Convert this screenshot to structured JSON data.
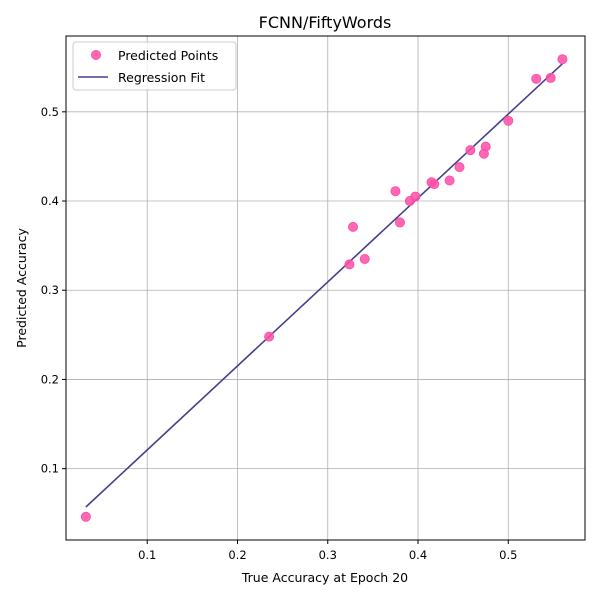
{
  "chart_data": {
    "type": "scatter",
    "title": "FCNN/FiftyWords",
    "xlabel": "True Accuracy at Epoch 20",
    "ylabel": "Predicted Accuracy",
    "xlim": [
      0.01,
      0.585
    ],
    "ylim": [
      0.02,
      0.585
    ],
    "xticks": [
      0.1,
      0.2,
      0.3,
      0.4,
      0.5
    ],
    "yticks": [
      0.1,
      0.2,
      0.3,
      0.4,
      0.5
    ],
    "xtick_labels": [
      "0.1",
      "0.2",
      "0.3",
      "0.4",
      "0.5"
    ],
    "ytick_labels": [
      "0.1",
      "0.2",
      "0.3",
      "0.4",
      "0.5"
    ],
    "grid": true,
    "legend": {
      "position": "top-left",
      "entries": [
        {
          "label": "Predicted Points",
          "kind": "marker"
        },
        {
          "label": "Regression Fit",
          "kind": "line"
        }
      ]
    },
    "series": [
      {
        "name": "Predicted Points",
        "kind": "scatter",
        "color": "#ff4fa7",
        "points": [
          {
            "x": 0.032,
            "y": 0.046
          },
          {
            "x": 0.235,
            "y": 0.248
          },
          {
            "x": 0.324,
            "y": 0.329
          },
          {
            "x": 0.328,
            "y": 0.371
          },
          {
            "x": 0.341,
            "y": 0.335
          },
          {
            "x": 0.375,
            "y": 0.411
          },
          {
            "x": 0.38,
            "y": 0.376
          },
          {
            "x": 0.391,
            "y": 0.4
          },
          {
            "x": 0.397,
            "y": 0.405
          },
          {
            "x": 0.415,
            "y": 0.421
          },
          {
            "x": 0.418,
            "y": 0.419
          },
          {
            "x": 0.435,
            "y": 0.423
          },
          {
            "x": 0.446,
            "y": 0.438
          },
          {
            "x": 0.458,
            "y": 0.457
          },
          {
            "x": 0.473,
            "y": 0.453
          },
          {
            "x": 0.475,
            "y": 0.461
          },
          {
            "x": 0.5,
            "y": 0.49
          },
          {
            "x": 0.531,
            "y": 0.537
          },
          {
            "x": 0.547,
            "y": 0.538
          },
          {
            "x": 0.56,
            "y": 0.559
          }
        ]
      },
      {
        "name": "Regression Fit",
        "kind": "line",
        "color": "#483d8b",
        "points": [
          {
            "x": 0.032,
            "y": 0.057
          },
          {
            "x": 0.56,
            "y": 0.554
          }
        ]
      }
    ]
  }
}
